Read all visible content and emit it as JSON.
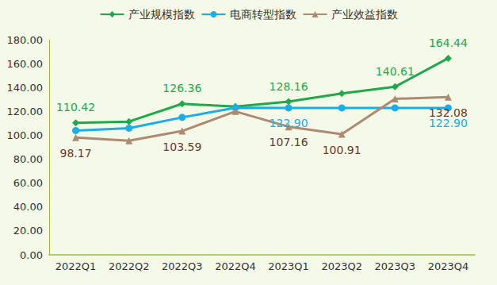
{
  "chart_data": {
    "type": "line",
    "categories": [
      "2022Q1",
      "2022Q2",
      "2022Q3",
      "2022Q4",
      "2023Q1",
      "2023Q2",
      "2023Q3",
      "2023Q4"
    ],
    "series": [
      {
        "name": "产业规模指数",
        "color": "#1fa84c",
        "marker": "diamond",
        "values": [
          110.42,
          111.5,
          126.36,
          124.0,
          128.16,
          135.0,
          140.61,
          164.44
        ],
        "value_labels": [
          "110.42",
          null,
          "126.36",
          null,
          "128.16",
          null,
          "140.61",
          "164.44"
        ]
      },
      {
        "name": "电商转型指数",
        "color": "#1aaee6",
        "marker": "circle",
        "values": [
          104.0,
          106.0,
          115.0,
          123.0,
          122.9,
          122.9,
          122.9,
          122.9
        ],
        "value_labels": [
          null,
          null,
          null,
          null,
          "122.90",
          null,
          null,
          "122.90"
        ]
      },
      {
        "name": "产业效益指数",
        "color": "#ad8a72",
        "marker": "triangle",
        "values": [
          98.17,
          95.5,
          103.59,
          120.0,
          107.16,
          100.91,
          130.5,
          132.08
        ],
        "value_labels": [
          "98.17",
          null,
          "103.59",
          null,
          "107.16",
          "100.91",
          null,
          "132.08"
        ]
      }
    ],
    "ylim": [
      0,
      180
    ],
    "yticks": [
      {
        "value": 0,
        "label": "0.00"
      },
      {
        "value": 20,
        "label": "20.00"
      },
      {
        "value": 40,
        "label": "40.00"
      },
      {
        "value": 60,
        "label": "60.00"
      },
      {
        "value": 80,
        "label": "80.00"
      },
      {
        "value": 100,
        "label": "100.00"
      },
      {
        "value": 120,
        "label": "120.00"
      },
      {
        "value": 140,
        "label": "140.00"
      },
      {
        "value": 160,
        "label": "160.00"
      },
      {
        "value": 180,
        "label": "180.00"
      }
    ],
    "grid": false,
    "legend": "top",
    "data_labels": true
  }
}
